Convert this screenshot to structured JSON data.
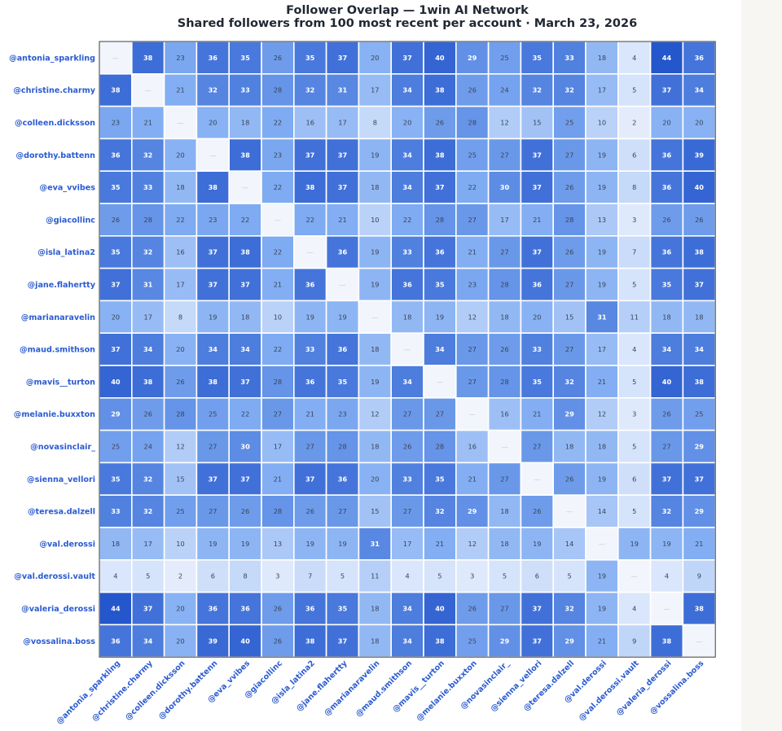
{
  "chart_data": {
    "type": "heatmap",
    "title": "Follower Overlap — 1win AI Network",
    "subtitle": "Shared followers from 100 most recent per account · March 23, 2026",
    "diagonal_label": "—",
    "accounts": [
      "@antonia_sparkling",
      "@christine.charmy",
      "@colleen.dicksson",
      "@dorothy.battenn",
      "@eva_vvibes",
      "@giacollinc",
      "@isla_latina2",
      "@jane.flahertty",
      "@marianaravelin",
      "@maud.smithson",
      "@mavis__turton",
      "@melanie.buxxton",
      "@novasinclair_",
      "@sienna_vellori",
      "@teresa.dalzell",
      "@val.derossi",
      "@val.derossi.vault",
      "@valeria_derossi",
      "@vossalina.boss"
    ],
    "matrix": [
      [
        null,
        38,
        23,
        36,
        35,
        26,
        35,
        37,
        20,
        37,
        40,
        29,
        25,
        35,
        33,
        18,
        4,
        44,
        36
      ],
      [
        38,
        null,
        21,
        32,
        33,
        28,
        32,
        31,
        17,
        34,
        38,
        26,
        24,
        32,
        32,
        17,
        5,
        37,
        34
      ],
      [
        23,
        21,
        null,
        20,
        18,
        22,
        16,
        17,
        8,
        20,
        26,
        28,
        12,
        15,
        25,
        10,
        2,
        20,
        20
      ],
      [
        36,
        32,
        20,
        null,
        38,
        23,
        37,
        37,
        19,
        34,
        38,
        25,
        27,
        37,
        27,
        19,
        6,
        36,
        39
      ],
      [
        35,
        33,
        18,
        38,
        null,
        22,
        38,
        37,
        18,
        34,
        37,
        22,
        30,
        37,
        26,
        19,
        8,
        36,
        40
      ],
      [
        26,
        28,
        22,
        23,
        22,
        null,
        22,
        21,
        10,
        22,
        28,
        27,
        17,
        21,
        28,
        13,
        3,
        26,
        26
      ],
      [
        35,
        32,
        16,
        37,
        38,
        22,
        null,
        36,
        19,
        33,
        36,
        21,
        27,
        37,
        26,
        19,
        7,
        36,
        38
      ],
      [
        37,
        31,
        17,
        37,
        37,
        21,
        36,
        null,
        19,
        36,
        35,
        23,
        28,
        36,
        27,
        19,
        5,
        35,
        37
      ],
      [
        20,
        17,
        8,
        19,
        18,
        10,
        19,
        19,
        null,
        18,
        19,
        12,
        18,
        20,
        15,
        31,
        11,
        18,
        18
      ],
      [
        37,
        34,
        20,
        34,
        34,
        22,
        33,
        36,
        18,
        null,
        34,
        27,
        26,
        33,
        27,
        17,
        4,
        34,
        34
      ],
      [
        40,
        38,
        26,
        38,
        37,
        28,
        36,
        35,
        19,
        34,
        null,
        27,
        28,
        35,
        32,
        21,
        5,
        40,
        38
      ],
      [
        29,
        26,
        28,
        25,
        22,
        27,
        21,
        23,
        12,
        27,
        27,
        null,
        16,
        21,
        29,
        12,
        3,
        26,
        25
      ],
      [
        25,
        24,
        12,
        27,
        30,
        17,
        27,
        28,
        18,
        26,
        28,
        16,
        null,
        27,
        18,
        18,
        5,
        27,
        29
      ],
      [
        35,
        32,
        15,
        37,
        37,
        21,
        37,
        36,
        20,
        33,
        35,
        21,
        27,
        null,
        26,
        19,
        6,
        37,
        37
      ],
      [
        33,
        32,
        25,
        27,
        26,
        28,
        26,
        27,
        15,
        27,
        32,
        29,
        18,
        26,
        null,
        14,
        5,
        32,
        29
      ],
      [
        18,
        17,
        10,
        19,
        19,
        13,
        19,
        19,
        31,
        17,
        21,
        12,
        18,
        19,
        14,
        null,
        19,
        19,
        21
      ],
      [
        4,
        5,
        2,
        6,
        8,
        3,
        7,
        5,
        11,
        4,
        5,
        3,
        5,
        6,
        5,
        19,
        null,
        4,
        9
      ],
      [
        44,
        37,
        20,
        36,
        36,
        26,
        36,
        35,
        18,
        34,
        40,
        26,
        27,
        37,
        32,
        19,
        4,
        null,
        38
      ],
      [
        36,
        34,
        20,
        39,
        40,
        26,
        38,
        37,
        18,
        34,
        38,
        25,
        29,
        37,
        29,
        21,
        9,
        38,
        null
      ]
    ],
    "value_range": [
      0,
      44
    ],
    "colors": {
      "low": "#eef3fd",
      "high": "#2456cc",
      "diagonal": "#f2f5fc",
      "label": "#2a5bd0",
      "text_dark": "#3a4356",
      "text_light": "#ffffff",
      "frame": "#3b3b3b"
    },
    "grid": false,
    "legend": "none"
  }
}
